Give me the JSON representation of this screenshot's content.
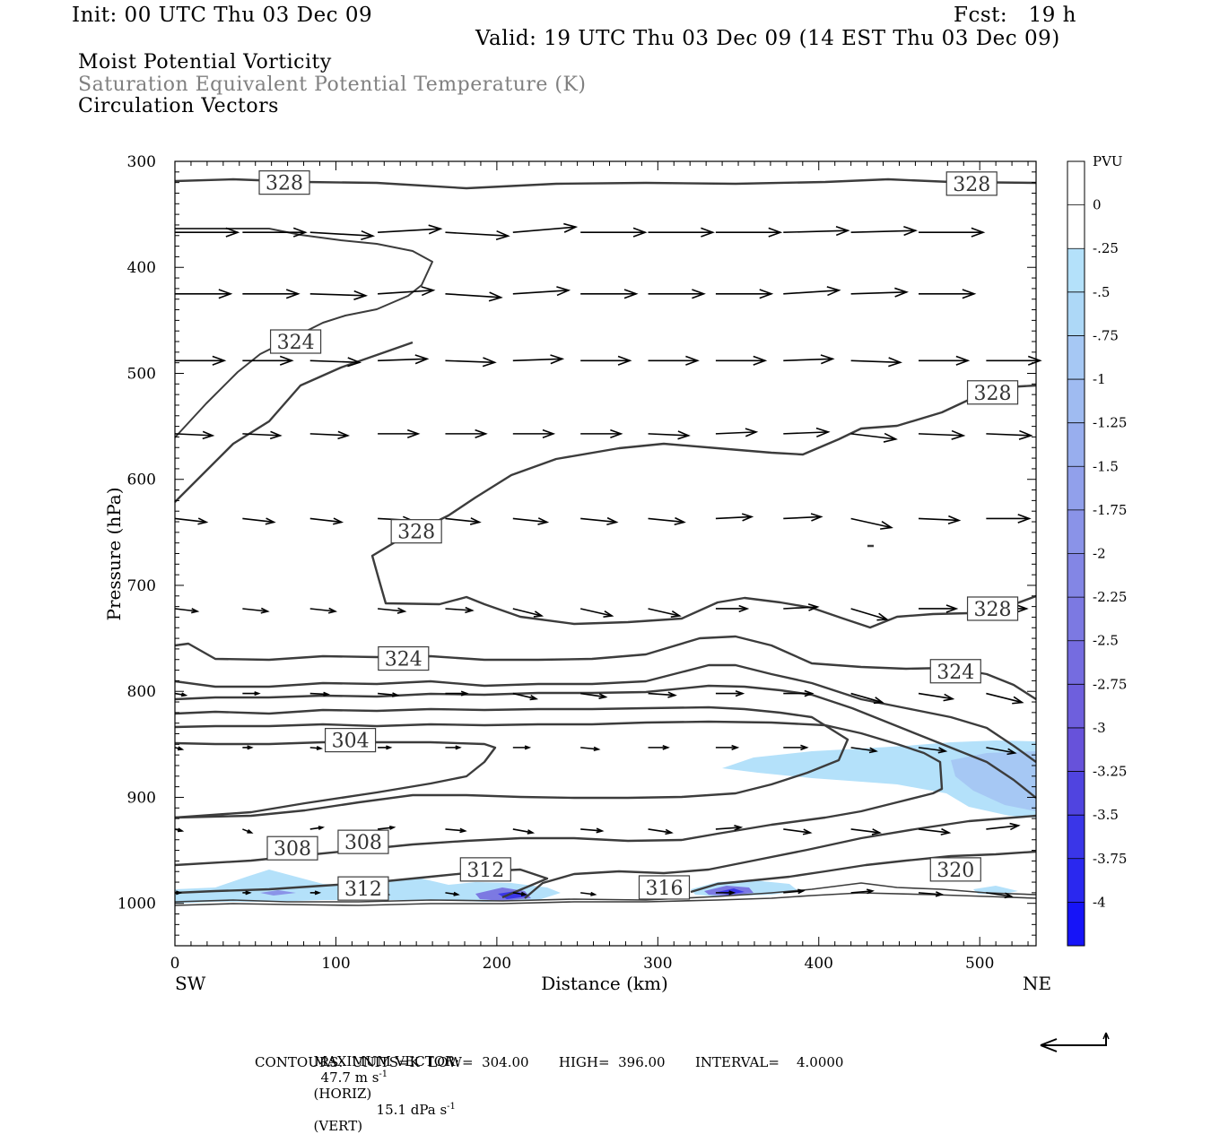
{
  "header": {
    "init": "Init: 00 UTC Thu 03 Dec 09",
    "fcst": "Fcst:   19 h",
    "valid": "Valid: 19 UTC Thu 03 Dec 09 (14 EST Thu 03 Dec 09)",
    "line1": "Moist Potential Vorticity",
    "line2": "Saturation Equivalent Potential Temperature (K)",
    "line3": "Circulation Vectors"
  },
  "footer": {
    "max_vector_label": "MAXIMUM VECTOR:",
    "horiz_value": "47.7 m s",
    "horiz_unit": "(HORIZ)",
    "vert_value": "15.1 dPa s",
    "vert_unit": "(VERT)",
    "exponent": "-1",
    "contours_line": "CONTOURS:  UNITS=K  LOW=  304.00       HIGH=  396.00       INTERVAL=    4.0000"
  },
  "chart_data": {
    "type": "cross-section",
    "xlabel": "Distance (km)",
    "ylabel": "Pressure (hPa)",
    "x_left_label": "SW",
    "x_right_label": "NE",
    "xlim": [
      0,
      535
    ],
    "ylim": [
      300,
      1040
    ],
    "xticks": [
      0,
      100,
      200,
      300,
      400,
      500
    ],
    "yticks": [
      300,
      400,
      500,
      600,
      700,
      800,
      900,
      1000
    ],
    "colorbar": {
      "label": "PVU",
      "levels": [
        "0",
        "-.25",
        "-.5",
        "-.75",
        "-1",
        "-1.25",
        "-1.5",
        "-1.75",
        "-2",
        "-2.25",
        "-2.5",
        "-2.75",
        "-3",
        "-3.25",
        "-3.5",
        "-3.75",
        "-4"
      ],
      "colors": [
        "#ffffff",
        "#ffffff",
        "#b4e1fa",
        "#add8f7",
        "#a6c8f4",
        "#9fbbf1",
        "#98aeee",
        "#91a0eb",
        "#8a93e8",
        "#8386e5",
        "#7c79e2",
        "#756ce0",
        "#6e5fdd",
        "#6752da",
        "#5044e0",
        "#3a36e8",
        "#2a28ef",
        "#1614f8"
      ]
    },
    "contour_labels": [
      {
        "value": "328",
        "x": 68,
        "p": 320
      },
      {
        "value": "328",
        "x": 495,
        "p": 321
      },
      {
        "value": "324",
        "x": 75,
        "p": 470
      },
      {
        "value": "328",
        "x": 508,
        "p": 518
      },
      {
        "value": "328",
        "x": 150,
        "p": 649
      },
      {
        "value": "328",
        "x": 508,
        "p": 722
      },
      {
        "value": "324",
        "x": 142,
        "p": 769
      },
      {
        "value": "324",
        "x": 485,
        "p": 781
      },
      {
        "value": "304",
        "x": 109,
        "p": 846
      },
      {
        "value": "308",
        "x": 73,
        "p": 948
      },
      {
        "value": "308",
        "x": 117,
        "p": 942
      },
      {
        "value": "312",
        "x": 193,
        "p": 968
      },
      {
        "value": "312",
        "x": 117,
        "p": 986
      },
      {
        "value": "316",
        "x": 304,
        "p": 985
      },
      {
        "value": "320",
        "x": 485,
        "p": 968
      }
    ]
  }
}
